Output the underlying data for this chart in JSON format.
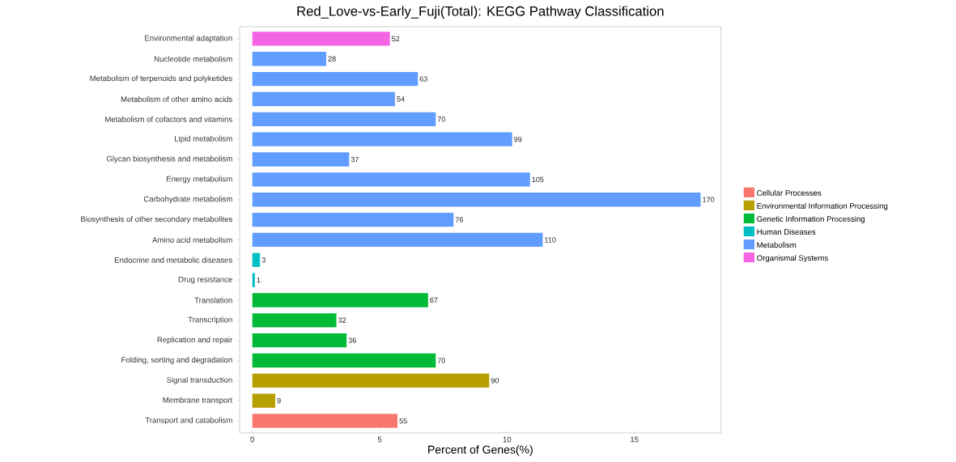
{
  "chart_data": {
    "type": "bar",
    "orientation": "horizontal",
    "title": "Red_Love-vs-Early_Fuji(Total): KEGG Pathway Classification",
    "xlabel": "Percent of Genes(%)",
    "categories": [
      "Environmental adaptation",
      "Nucleotide metabolism",
      "Metabolism of terpenoids and polyketides",
      "Metabolism of other amino acids",
      "Metabolism of cofactors and vitamins",
      "Lipid metabolism",
      "Glycan biosynthesis and metabolism",
      "Energy metabolism",
      "Carbohydrate metabolism",
      "Biosynthesis of other secondary metabolites",
      "Amino acid metabolism",
      "Endocrine and metabolic diseases",
      "Drug resistance",
      "Translation",
      "Transcription",
      "Replication and repair",
      "Folding, sorting and degradation",
      "Signal transduction",
      "Membrane transport",
      "Transport and catabolism"
    ],
    "series": [
      {
        "name": "Cellular Processes",
        "color": "#f8766d",
        "values": [
          null,
          null,
          null,
          null,
          null,
          null,
          null,
          null,
          null,
          null,
          null,
          null,
          null,
          null,
          null,
          null,
          null,
          null,
          null,
          5.7
        ]
      },
      {
        "name": "Environmental Information Processing",
        "color": "#b79f00",
        "values": [
          null,
          null,
          null,
          null,
          null,
          null,
          null,
          null,
          null,
          null,
          null,
          null,
          null,
          null,
          null,
          null,
          null,
          9.3,
          0.9,
          null
        ]
      },
      {
        "name": "Genetic Information Processing",
        "color": "#00ba38",
        "values": [
          null,
          null,
          null,
          null,
          null,
          null,
          null,
          null,
          null,
          null,
          null,
          null,
          null,
          6.9,
          3.3,
          3.7,
          7.2,
          null,
          null,
          null
        ]
      },
      {
        "name": "Human Diseases",
        "color": "#00bfc4",
        "values": [
          null,
          null,
          null,
          null,
          null,
          null,
          null,
          null,
          null,
          null,
          null,
          0.3,
          0.1,
          null,
          null,
          null,
          null,
          null,
          null,
          null
        ]
      },
      {
        "name": "Metabolism",
        "color": "#619cff",
        "values": [
          null,
          2.9,
          6.5,
          5.6,
          7.2,
          10.2,
          3.8,
          10.9,
          17.6,
          7.9,
          11.4,
          null,
          null,
          null,
          null,
          null,
          null,
          null,
          null,
          null
        ]
      },
      {
        "name": "Organismal Systems",
        "color": "#f564e3",
        "values": [
          5.4,
          null,
          null,
          null,
          null,
          null,
          null,
          null,
          null,
          null,
          null,
          null,
          null,
          null,
          null,
          null,
          null,
          null,
          null,
          null
        ]
      }
    ],
    "annotations": [
      {
        "text": "52",
        "x": 5.4,
        "y": "Environmental adaptation"
      },
      {
        "text": "28",
        "x": 2.9,
        "y": "Nucleotide metabolism"
      },
      {
        "text": "63",
        "x": 6.5,
        "y": "Metabolism of terpenoids and polyketides"
      },
      {
        "text": "54",
        "x": 5.6,
        "y": "Metabolism of other amino acids"
      },
      {
        "text": "70",
        "x": 7.2,
        "y": "Metabolism of cofactors and vitamins"
      },
      {
        "text": "99",
        "x": 10.2,
        "y": "Lipid metabolism"
      },
      {
        "text": "37",
        "x": 3.8,
        "y": "Glycan biosynthesis and metabolism"
      },
      {
        "text": "105",
        "x": 10.9,
        "y": "Energy metabolism"
      },
      {
        "text": "170",
        "x": 17.6,
        "y": "Carbohydrate metabolism"
      },
      {
        "text": "76",
        "x": 7.9,
        "y": "Biosynthesis of other secondary metabolites"
      },
      {
        "text": "110",
        "x": 11.4,
        "y": "Amino acid metabolism"
      },
      {
        "text": "3",
        "x": 0.3,
        "y": "Endocrine and metabolic diseases"
      },
      {
        "text": "1",
        "x": 0.1,
        "y": "Drug resistance"
      },
      {
        "text": "67",
        "x": 6.9,
        "y": "Translation"
      },
      {
        "text": "32",
        "x": 3.3,
        "y": "Transcription"
      },
      {
        "text": "36",
        "x": 3.7,
        "y": "Replication and repair"
      },
      {
        "text": "70",
        "x": 7.2,
        "y": "Folding, sorting and degradation"
      },
      {
        "text": "90",
        "x": 9.3,
        "y": "Signal transduction"
      },
      {
        "text": "9",
        "x": 0.9,
        "y": "Membrane transport"
      },
      {
        "text": "55",
        "x": 5.7,
        "y": "Transport and catabolism"
      }
    ],
    "xlim": [
      -0.5,
      18.4
    ],
    "xticks": [
      0,
      5,
      10,
      15
    ],
    "legend": "right",
    "grid": false
  }
}
